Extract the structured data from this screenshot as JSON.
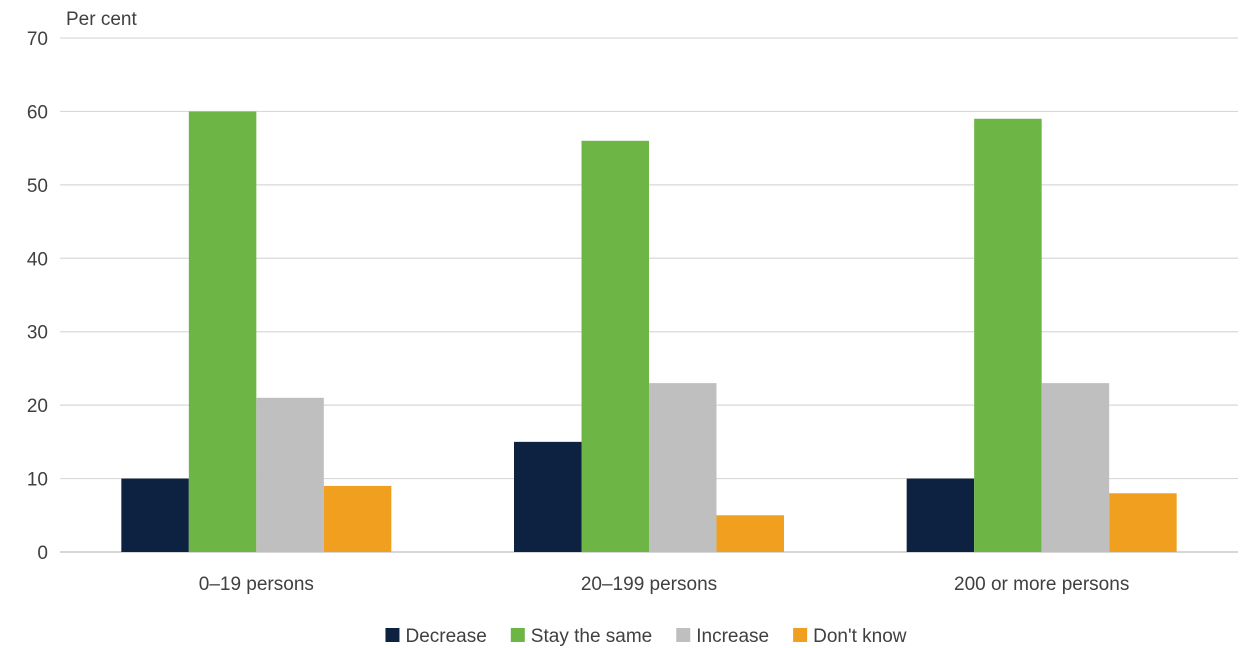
{
  "chart_data": {
    "type": "bar",
    "title": "",
    "xlabel": "",
    "ylabel": "Per cent",
    "ylim": [
      0,
      70
    ],
    "yticks": [
      0,
      10,
      20,
      30,
      40,
      50,
      60,
      70
    ],
    "grid": true,
    "legend_position": "bottom",
    "categories": [
      "0–19 persons",
      "20–199 persons",
      "200 or more persons"
    ],
    "series": [
      {
        "name": "Decrease",
        "color": "#0d2240",
        "values": [
          10,
          15,
          10
        ]
      },
      {
        "name": "Stay the same",
        "color": "#6db645",
        "values": [
          60,
          56,
          59
        ]
      },
      {
        "name": "Increase",
        "color": "#bfbfbf",
        "values": [
          21,
          23,
          23
        ]
      },
      {
        "name": "Don't know",
        "color": "#f0a01e",
        "values": [
          9,
          5,
          8
        ]
      }
    ]
  }
}
